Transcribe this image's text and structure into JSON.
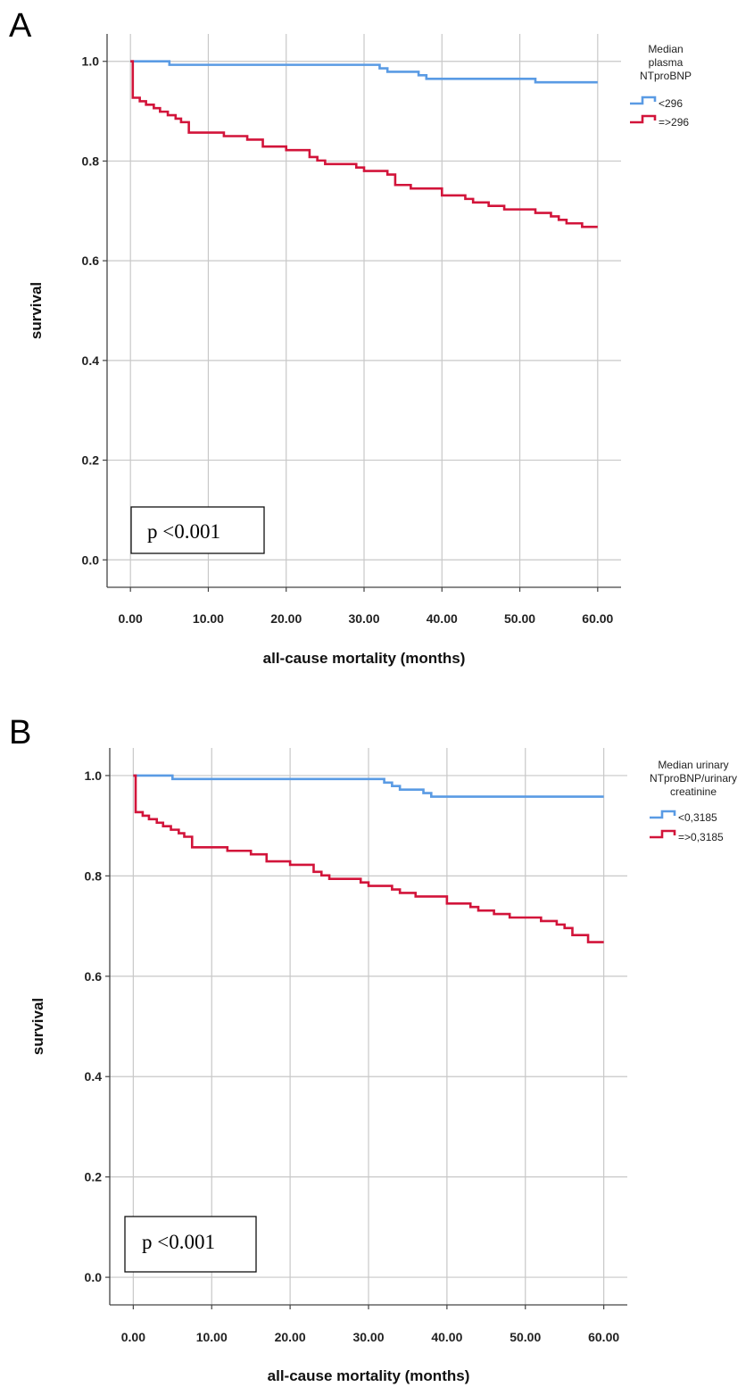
{
  "panels": [
    {
      "letter": "A",
      "legend_title": [
        "Median",
        "plasma",
        "NTproBNP"
      ],
      "legend_items": [
        "<296",
        "=>296"
      ],
      "p_text": "p <0.001"
    },
    {
      "letter": "B",
      "legend_title": [
        "Median urinary",
        "NTproBNP/urinary",
        "creatinine"
      ],
      "legend_items": [
        "<0,3185",
        "=>0,3185"
      ],
      "p_text": "p <0.001"
    }
  ],
  "chart_data": [
    {
      "type": "line",
      "step": true,
      "xlabel": "all-cause mortality (months)",
      "ylabel": "survival",
      "xlim": [
        -3,
        63
      ],
      "ylim": [
        -0.055,
        1.055
      ],
      "x_ticks": [
        0,
        10,
        20,
        30,
        40,
        50,
        60
      ],
      "x_tick_labels": [
        "0.00",
        "10.00",
        "20.00",
        "30.00",
        "40.00",
        "50.00",
        "60.00"
      ],
      "y_ticks": [
        0,
        0.2,
        0.4,
        0.6,
        0.8,
        1.0
      ],
      "y_tick_labels": [
        "0.0",
        "0.2",
        "0.4",
        "0.6",
        "0.8",
        "1.0"
      ],
      "grid": true,
      "legend_position": "top-right outside",
      "series": [
        {
          "name": "<296",
          "color": "#5a9be4",
          "x": [
            0,
            5,
            32,
            33,
            37,
            38,
            52,
            60
          ],
          "y": [
            1.0,
            0.993,
            0.986,
            0.979,
            0.972,
            0.965,
            0.958,
            0.958
          ]
        },
        {
          "name": "=>296",
          "color": "#d2143a",
          "x": [
            0,
            0.3,
            1.2,
            2.0,
            3.0,
            3.8,
            4.8,
            5.8,
            6.5,
            7.5,
            12,
            15,
            17,
            20,
            23,
            24,
            25,
            29,
            30,
            33,
            34,
            36,
            40,
            43,
            44,
            46,
            48,
            52,
            54,
            55,
            56,
            58,
            60
          ],
          "y": [
            1.0,
            0.927,
            0.92,
            0.913,
            0.906,
            0.899,
            0.892,
            0.885,
            0.878,
            0.857,
            0.85,
            0.843,
            0.829,
            0.822,
            0.808,
            0.801,
            0.794,
            0.787,
            0.78,
            0.773,
            0.752,
            0.745,
            0.731,
            0.724,
            0.717,
            0.71,
            0.703,
            0.696,
            0.689,
            0.682,
            0.675,
            0.668,
            0.668
          ]
        }
      ]
    },
    {
      "type": "line",
      "step": true,
      "xlabel": "all-cause mortality (months)",
      "ylabel": "survival",
      "xlim": [
        -3,
        63
      ],
      "ylim": [
        -0.055,
        1.055
      ],
      "x_ticks": [
        0,
        10,
        20,
        30,
        40,
        50,
        60
      ],
      "x_tick_labels": [
        "0.00",
        "10.00",
        "20.00",
        "30.00",
        "40.00",
        "50.00",
        "60.00"
      ],
      "y_ticks": [
        0,
        0.2,
        0.4,
        0.6,
        0.8,
        1.0
      ],
      "y_tick_labels": [
        "0.0",
        "0.2",
        "0.4",
        "0.6",
        "0.8",
        "1.0"
      ],
      "grid": true,
      "legend_position": "top-right outside",
      "series": [
        {
          "name": "<0,3185",
          "color": "#5a9be4",
          "x": [
            0,
            5,
            32,
            33,
            34,
            37,
            38,
            60
          ],
          "y": [
            1.0,
            0.993,
            0.986,
            0.979,
            0.972,
            0.965,
            0.958,
            0.958
          ]
        },
        {
          "name": "=>0,3185",
          "color": "#d2143a",
          "x": [
            0,
            0.3,
            1.2,
            2.0,
            3.0,
            3.8,
            4.8,
            5.8,
            6.5,
            7.5,
            12,
            15,
            17,
            20,
            23,
            24,
            25,
            29,
            30,
            33,
            34,
            36,
            40,
            43,
            44,
            46,
            48,
            52,
            54,
            55,
            56,
            58,
            60
          ],
          "y": [
            1.0,
            0.927,
            0.92,
            0.913,
            0.906,
            0.899,
            0.892,
            0.885,
            0.878,
            0.857,
            0.85,
            0.843,
            0.829,
            0.822,
            0.808,
            0.801,
            0.794,
            0.787,
            0.78,
            0.773,
            0.766,
            0.759,
            0.745,
            0.738,
            0.731,
            0.724,
            0.717,
            0.71,
            0.703,
            0.696,
            0.682,
            0.668,
            0.668
          ]
        }
      ]
    }
  ]
}
